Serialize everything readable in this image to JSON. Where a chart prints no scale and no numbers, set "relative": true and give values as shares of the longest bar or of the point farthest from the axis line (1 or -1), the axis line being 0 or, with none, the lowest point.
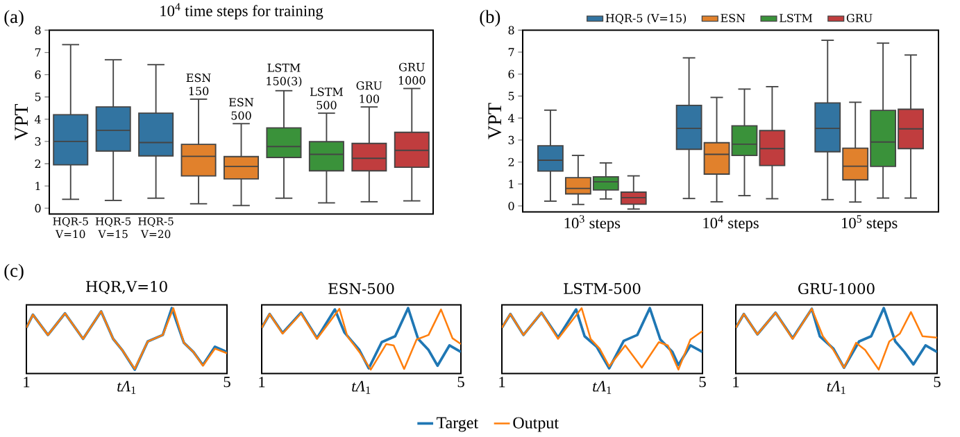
{
  "chart_data": [
    {
      "type": "box",
      "title": "10$^{4}$ time steps for training",
      "ylabel": "VPT",
      "categories": [
        "HQR-5 V=10",
        "HQR-5 V=15",
        "HQR-5 V=20",
        null,
        null,
        null,
        null,
        null,
        null
      ],
      "boxes": [
        {
          "low": 0.4,
          "q1": 1.95,
          "median": 3.0,
          "q3": 4.2,
          "high": 7.35
        },
        {
          "low": 0.35,
          "q1": 2.57,
          "median": 3.5,
          "q3": 4.55,
          "high": 6.67
        },
        {
          "low": 0.45,
          "q1": 2.35,
          "median": 2.95,
          "q3": 4.27,
          "high": 6.45
        },
        {
          "low": 0.2,
          "q1": 1.45,
          "median": 2.33,
          "q3": 2.87,
          "high": 4.9
        },
        {
          "low": 0.12,
          "q1": 1.32,
          "median": 1.88,
          "q3": 2.32,
          "high": 3.8
        },
        {
          "low": 0.45,
          "q1": 2.28,
          "median": 2.77,
          "q3": 3.61,
          "high": 5.28
        },
        {
          "low": 0.24,
          "q1": 1.68,
          "median": 2.42,
          "q3": 2.99,
          "high": 4.27
        },
        {
          "low": 0.29,
          "q1": 1.68,
          "median": 2.24,
          "q3": 2.91,
          "high": 4.55
        },
        {
          "low": 0.33,
          "q1": 1.84,
          "median": 2.6,
          "q3": 3.41,
          "high": 5.38
        }
      ],
      "colors": [
        "#3274a1",
        "#3274a1",
        "#3274a1",
        "#e1812c",
        "#e1812c",
        "#3a923a",
        "#3a923a",
        "#c03d3e",
        "#c03d3e"
      ],
      "ylim": [
        -0.26,
        8
      ],
      "yticks": [
        0,
        1,
        2,
        3,
        4,
        5,
        6,
        7,
        8
      ],
      "annotations": [
        "(a)",
        "ESN 150",
        "ESN 500",
        "LSTM 150(3)",
        "LSTM 500",
        "GRU 100",
        "GRU 1000"
      ]
    },
    {
      "type": "box",
      "ylabel": "VPT",
      "categories": [
        "10$^{3}$ steps",
        "10$^{4}$ steps",
        "10$^{5}$ steps"
      ],
      "series": [
        {
          "name": "HQR-5 (V=15)",
          "color": "#3274a1",
          "boxes": [
            {
              "low": 0.22,
              "q1": 1.59,
              "median": 2.08,
              "q3": 2.74,
              "high": 4.36
            },
            {
              "low": 0.34,
              "q1": 2.58,
              "median": 3.53,
              "q3": 4.58,
              "high": 6.74
            },
            {
              "low": 0.29,
              "q1": 2.47,
              "median": 3.53,
              "q3": 4.69,
              "high": 7.54
            }
          ]
        },
        {
          "name": "ESN",
          "color": "#e1812c",
          "boxes": [
            {
              "low": 0.07,
              "q1": 0.55,
              "median": 0.8,
              "q3": 1.29,
              "high": 2.3
            },
            {
              "low": 0.19,
              "q1": 1.45,
              "median": 2.35,
              "q3": 2.88,
              "high": 4.94
            },
            {
              "low": 0.18,
              "q1": 1.19,
              "median": 1.81,
              "q3": 2.63,
              "high": 4.72
            }
          ]
        },
        {
          "name": "LSTM",
          "color": "#3a923a",
          "boxes": [
            {
              "low": 0.32,
              "q1": 0.73,
              "median": 1.1,
              "q3": 1.33,
              "high": 1.96
            },
            {
              "low": 0.47,
              "q1": 2.3,
              "median": 2.81,
              "q3": 3.65,
              "high": 5.32
            },
            {
              "low": 0.36,
              "q1": 1.8,
              "median": 2.91,
              "q3": 4.35,
              "high": 7.41
            }
          ]
        },
        {
          "name": "GRU",
          "color": "#c03d3e",
          "boxes": [
            {
              "low": -0.14,
              "q1": 0.08,
              "median": 0.38,
              "q3": 0.63,
              "high": 1.37
            },
            {
              "low": 0.33,
              "q1": 1.84,
              "median": 2.61,
              "q3": 3.43,
              "high": 5.43
            },
            {
              "low": 0.36,
              "q1": 2.61,
              "median": 3.51,
              "q3": 4.4,
              "high": 6.87
            }
          ]
        }
      ],
      "legend": "top",
      "ylim": [
        -0.27,
        8
      ],
      "yticks": [
        0,
        1,
        2,
        3,
        4,
        5,
        6,
        7,
        8
      ],
      "annotations": [
        "(b)"
      ]
    },
    {
      "type": "line",
      "title": "HQR,V=10",
      "xlabel": "*tΛ*$_{1}$",
      "relative": true,
      "xlim": [
        1,
        5
      ],
      "xticks": [
        1,
        5
      ],
      "legend": "bottom",
      "annotations": [
        "(c)"
      ],
      "series": [
        {
          "name": "Target",
          "color": "#1f77b4",
          "x": [
            1,
            1.13,
            1.43,
            1.77,
            2.13,
            2.49,
            2.73,
            2.91,
            3.16,
            3.42,
            3.72,
            3.9,
            4.14,
            4.33,
            4.52,
            4.76,
            5
          ],
          "values": [
            0.7,
            0.9,
            0.59,
            0.92,
            0.53,
            0.95,
            0.53,
            0.36,
            0.06,
            0.49,
            0.59,
            1.0,
            0.47,
            0.33,
            0.13,
            0.41,
            0.33
          ]
        },
        {
          "name": "Output",
          "color": "#ff7f0e",
          "x": [
            1,
            1.13,
            1.43,
            1.77,
            2.13,
            2.49,
            2.73,
            2.91,
            3.16,
            3.42,
            3.72,
            3.93,
            4.14,
            4.33,
            4.52,
            4.76,
            5
          ],
          "values": [
            0.7,
            0.9,
            0.59,
            0.92,
            0.53,
            0.95,
            0.53,
            0.36,
            0.07,
            0.49,
            0.59,
            1.0,
            0.47,
            0.33,
            0.12,
            0.38,
            0.31
          ]
        }
      ]
    },
    {
      "type": "line",
      "title": "ESN-500",
      "xlabel": "*tΛ*$_{1}$",
      "relative": true,
      "xlim": [
        1,
        5
      ],
      "xticks": [
        1,
        5
      ],
      "series": [
        {
          "color": "#1f77b4",
          "x": [
            1,
            1.16,
            1.42,
            1.79,
            2.11,
            2.47,
            2.66,
            2.96,
            3.15,
            3.41,
            3.68,
            3.94,
            4.14,
            4.35,
            4.53,
            4.77,
            5
          ],
          "values": [
            0.7,
            0.91,
            0.62,
            0.93,
            0.54,
            0.98,
            0.63,
            0.36,
            0.08,
            0.48,
            0.57,
            1.0,
            0.53,
            0.36,
            0.12,
            0.43,
            0.33
          ]
        },
        {
          "color": "#ff7f0e",
          "x": [
            1,
            1.16,
            1.42,
            1.79,
            2.11,
            2.56,
            2.72,
            2.96,
            3.19,
            3.5,
            3.65,
            3.86,
            4.11,
            4.35,
            4.6,
            4.83,
            5
          ],
          "values": [
            0.7,
            0.91,
            0.61,
            0.92,
            0.53,
            0.99,
            0.57,
            0.33,
            0.06,
            0.45,
            0.43,
            0.07,
            0.52,
            0.59,
            0.98,
            0.54,
            0.45
          ]
        }
      ]
    },
    {
      "type": "line",
      "title": "LSTM-500",
      "xlabel": "*tΛ*$_{1}$",
      "relative": true,
      "xlim": [
        1,
        5
      ],
      "xticks": [
        1,
        5
      ],
      "series": [
        {
          "color": "#1f77b4",
          "x": [
            1,
            1.17,
            1.43,
            1.79,
            2.12,
            2.48,
            2.65,
            2.89,
            3.14,
            3.43,
            3.7,
            3.95,
            4.16,
            4.4,
            4.52,
            4.76,
            5
          ],
          "values": [
            0.7,
            0.91,
            0.59,
            0.93,
            0.55,
            0.98,
            0.57,
            0.41,
            0.08,
            0.5,
            0.59,
            1.0,
            0.52,
            0.33,
            0.13,
            0.43,
            0.33
          ]
        },
        {
          "color": "#ff7f0e",
          "x": [
            1,
            1.17,
            1.43,
            1.79,
            2.12,
            2.59,
            2.77,
            2.95,
            3.14,
            3.46,
            3.79,
            4.13,
            4.31,
            4.52,
            4.76,
            5
          ],
          "values": [
            0.7,
            0.91,
            0.59,
            0.93,
            0.53,
            1.0,
            0.53,
            0.38,
            0.11,
            0.43,
            0.09,
            0.48,
            0.43,
            0.06,
            0.52,
            0.65
          ]
        }
      ]
    },
    {
      "type": "line",
      "title": "GRU-1000",
      "xlabel": "*tΛ*$_{1}$",
      "relative": true,
      "xlim": [
        1,
        5
      ],
      "xticks": [
        1,
        5
      ],
      "series": [
        {
          "color": "#1f77b4",
          "x": [
            1,
            1.16,
            1.43,
            1.79,
            2.13,
            2.51,
            2.67,
            2.94,
            3.15,
            3.45,
            3.69,
            3.94,
            4.17,
            4.35,
            4.53,
            4.77,
            5
          ],
          "values": [
            0.7,
            0.91,
            0.6,
            0.93,
            0.54,
            0.99,
            0.57,
            0.38,
            0.09,
            0.49,
            0.57,
            1.0,
            0.49,
            0.33,
            0.14,
            0.43,
            0.33
          ]
        },
        {
          "color": "#ff7f0e",
          "x": [
            1,
            1.16,
            1.43,
            1.79,
            2.13,
            2.51,
            2.73,
            2.94,
            3.15,
            3.39,
            3.57,
            3.84,
            4.05,
            4.26,
            4.48,
            4.71,
            5
          ],
          "values": [
            0.7,
            0.91,
            0.6,
            0.93,
            0.53,
            0.99,
            0.57,
            0.36,
            0.09,
            0.47,
            0.36,
            0.06,
            0.49,
            0.61,
            0.94,
            0.57,
            0.55
          ]
        }
      ]
    }
  ]
}
